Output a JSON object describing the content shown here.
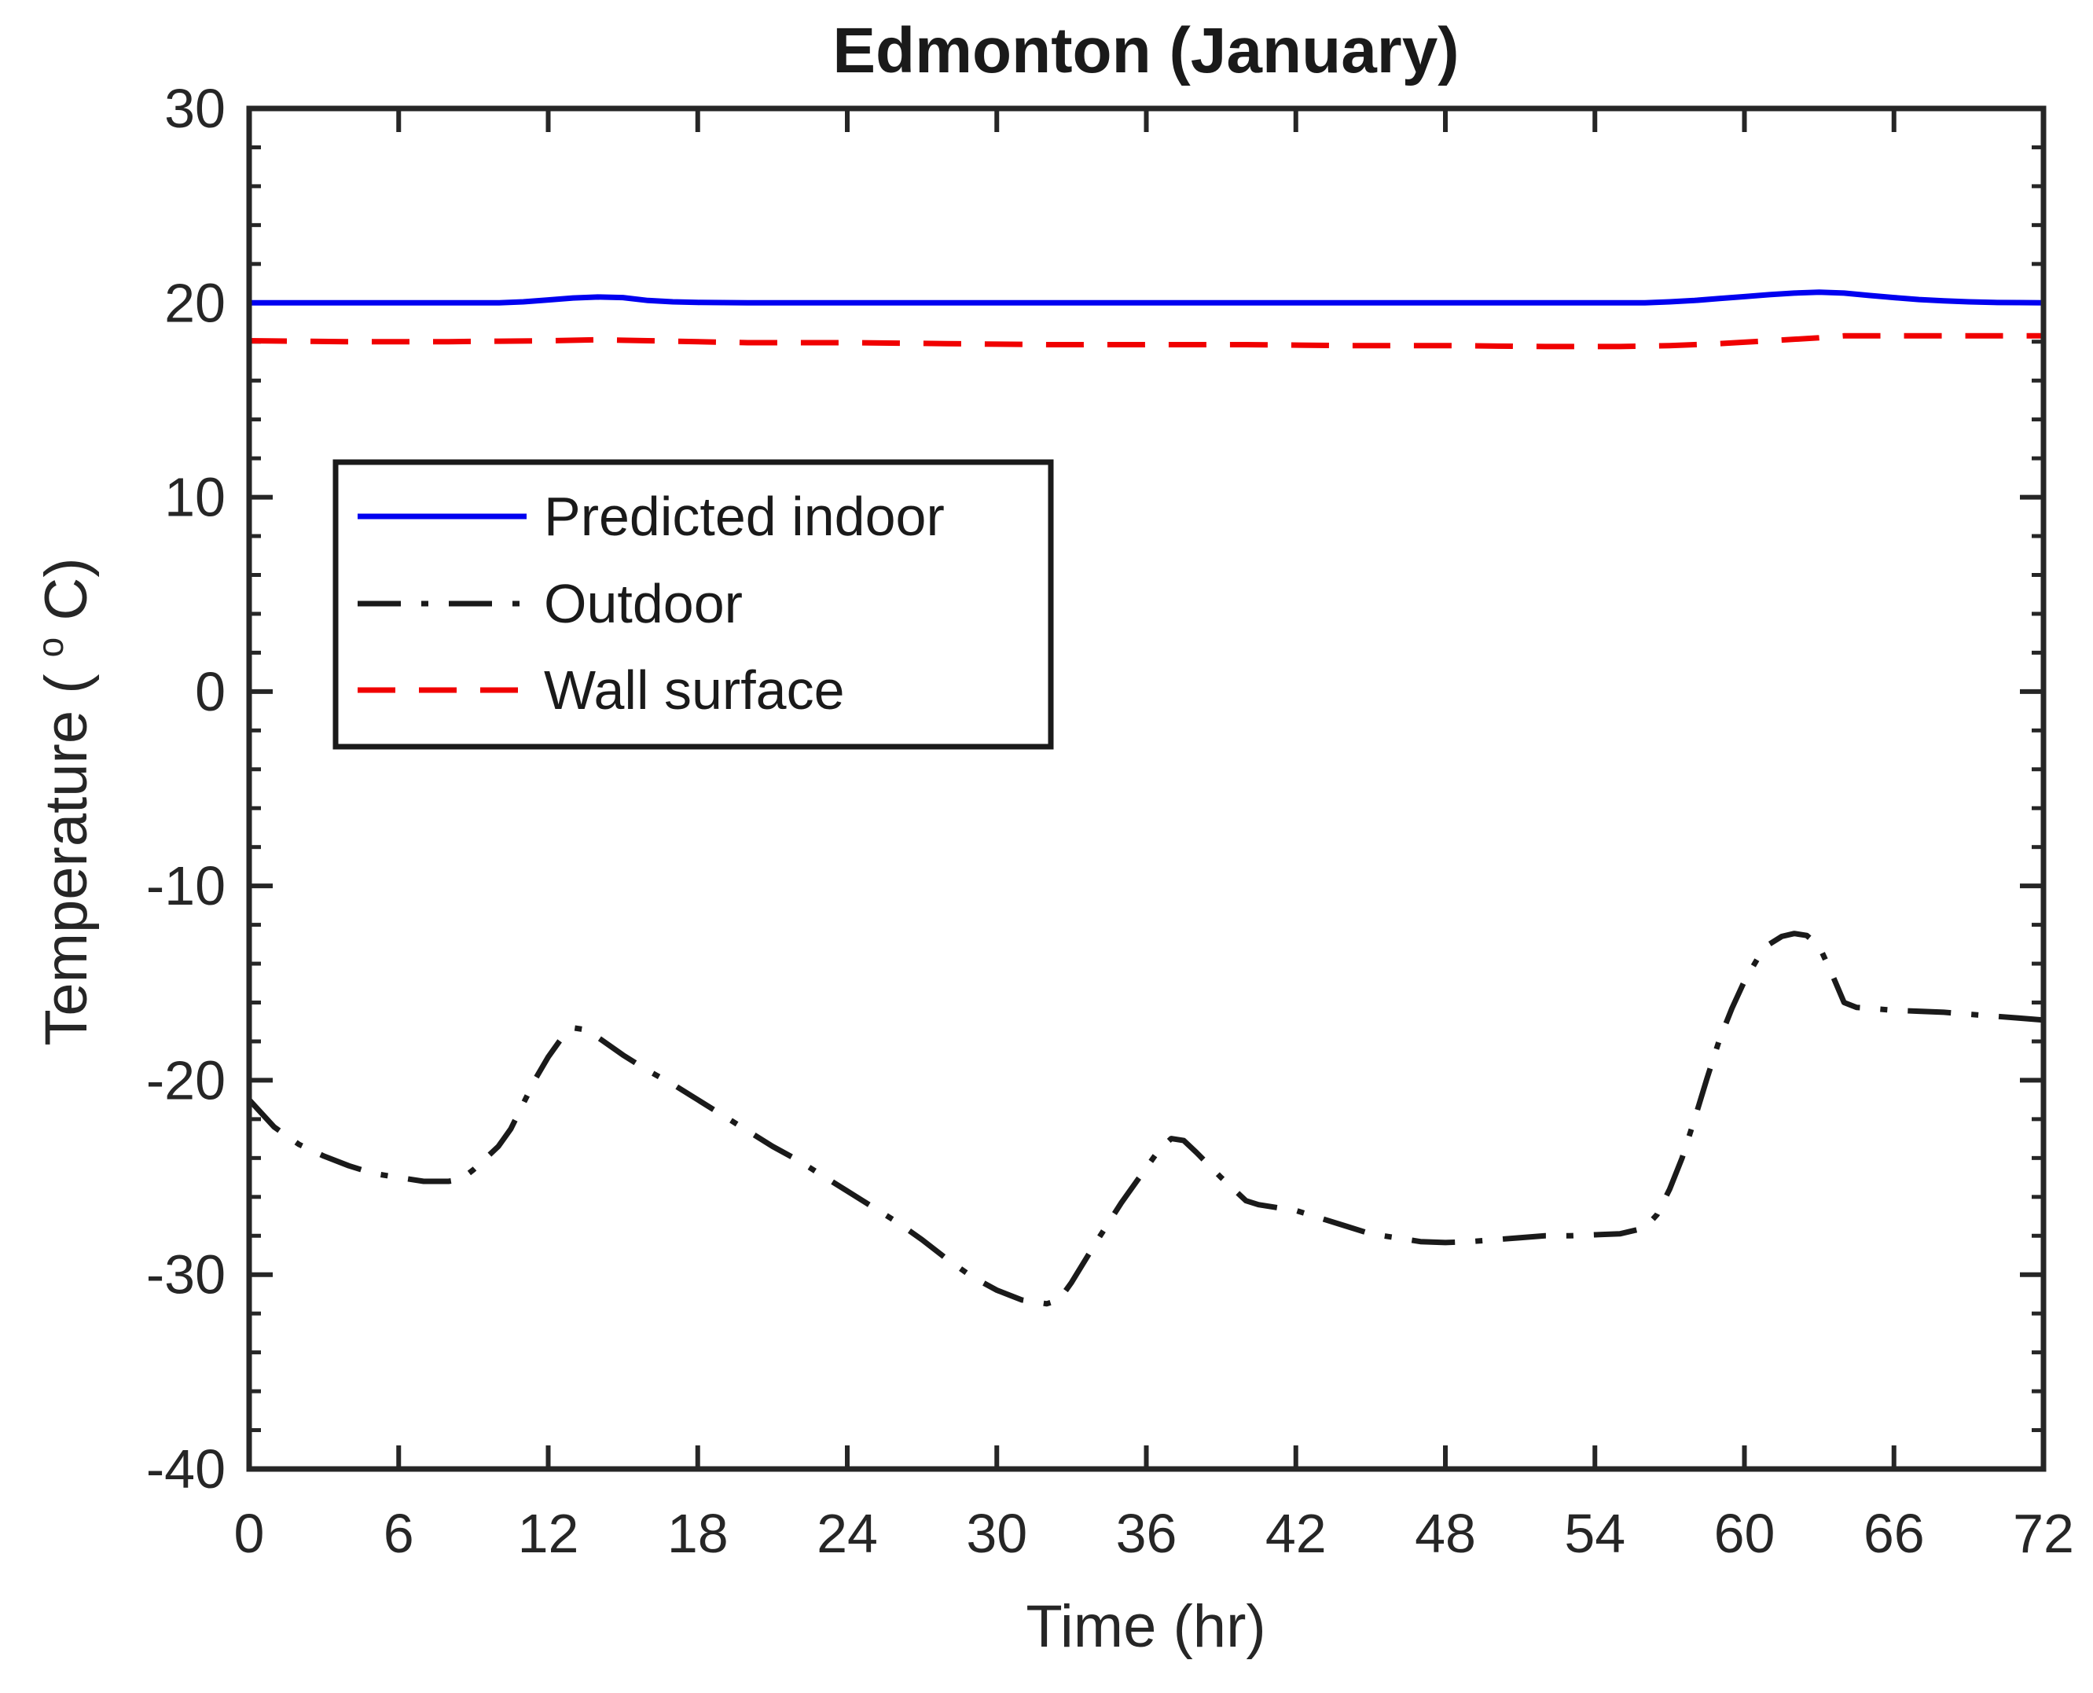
{
  "title": "Edmonton (January)",
  "colors": {
    "axis": "#262626",
    "background": "#ffffff",
    "predicted_indoor": "#0000f0",
    "outdoor": "#1a1a1a",
    "wall_surface": "#f00000"
  },
  "legend": {
    "position": "upper-left-inside",
    "items": [
      "Predicted indoor",
      "Outdoor",
      "Wall surface"
    ]
  },
  "chart_data": {
    "type": "line",
    "title": "Edmonton (January)",
    "xlabel": "Time (hr)",
    "ylabel": "Temperature (oC)",
    "ylabel_parts": [
      "Temperature (",
      "o",
      "C)"
    ],
    "xlim": [
      0,
      72
    ],
    "ylim": [
      -40,
      30
    ],
    "xticks": [
      0,
      6,
      12,
      18,
      24,
      30,
      36,
      42,
      48,
      54,
      60,
      66,
      72
    ],
    "yticks": [
      30,
      20,
      10,
      0,
      -10,
      -20,
      -30,
      -40
    ],
    "y_minor_step": 2,
    "grid": false,
    "legend_position": "upper-left",
    "series": [
      {
        "id": "predicted-indoor",
        "label": "Predicted indoor",
        "color": "#0000f0",
        "style": "solid",
        "dash": "none",
        "points": [
          [
            0,
            20
          ],
          [
            4,
            20
          ],
          [
            8,
            20
          ],
          [
            10,
            20
          ],
          [
            11,
            20.05
          ],
          [
            12,
            20.15
          ],
          [
            13,
            20.25
          ],
          [
            14,
            20.3
          ],
          [
            15,
            20.27
          ],
          [
            16,
            20.12
          ],
          [
            17,
            20.05
          ],
          [
            18,
            20.02
          ],
          [
            20,
            20
          ],
          [
            24,
            20
          ],
          [
            28,
            20
          ],
          [
            32,
            20
          ],
          [
            36,
            20
          ],
          [
            40,
            20
          ],
          [
            44,
            20
          ],
          [
            48,
            20
          ],
          [
            52,
            20
          ],
          [
            56,
            20
          ],
          [
            57,
            20.05
          ],
          [
            58,
            20.12
          ],
          [
            59,
            20.22
          ],
          [
            60,
            20.32
          ],
          [
            61,
            20.42
          ],
          [
            62,
            20.5
          ],
          [
            63,
            20.55
          ],
          [
            64,
            20.5
          ],
          [
            65,
            20.38
          ],
          [
            66,
            20.27
          ],
          [
            67,
            20.17
          ],
          [
            68,
            20.1
          ],
          [
            69,
            20.05
          ],
          [
            70,
            20.02
          ],
          [
            71,
            20.01
          ],
          [
            72,
            20
          ]
        ]
      },
      {
        "id": "outdoor",
        "label": "Outdoor",
        "color": "#1a1a1a",
        "style": "dash-dot",
        "dash": "55 26 9 26",
        "points": [
          [
            0,
            -21
          ],
          [
            1,
            -22.4
          ],
          [
            2,
            -23.3
          ],
          [
            3,
            -23.9
          ],
          [
            4,
            -24.4
          ],
          [
            5,
            -24.8
          ],
          [
            6,
            -25.0
          ],
          [
            7,
            -25.2
          ],
          [
            8,
            -25.2
          ],
          [
            8.5,
            -25.1
          ],
          [
            9,
            -24.6
          ],
          [
            10,
            -23.4
          ],
          [
            10.5,
            -22.5
          ],
          [
            11,
            -21.2
          ],
          [
            11.5,
            -19.9
          ],
          [
            12,
            -18.8
          ],
          [
            12.5,
            -17.9
          ],
          [
            13,
            -17.3
          ],
          [
            13.5,
            -17.4
          ],
          [
            14,
            -17.8
          ],
          [
            15,
            -18.7
          ],
          [
            16,
            -19.5
          ],
          [
            17,
            -20.2
          ],
          [
            18,
            -21.0
          ],
          [
            19,
            -21.8
          ],
          [
            20,
            -22.6
          ],
          [
            21,
            -23.4
          ],
          [
            22,
            -24.1
          ],
          [
            23,
            -24.9
          ],
          [
            24,
            -25.7
          ],
          [
            25,
            -26.5
          ],
          [
            26,
            -27.3
          ],
          [
            27,
            -28.2
          ],
          [
            28,
            -29.2
          ],
          [
            29,
            -30.1
          ],
          [
            30,
            -30.8
          ],
          [
            31,
            -31.3
          ],
          [
            32,
            -31.5
          ],
          [
            32.5,
            -31.3
          ],
          [
            33,
            -30.4
          ],
          [
            34,
            -28.3
          ],
          [
            35,
            -26.3
          ],
          [
            36,
            -24.5
          ],
          [
            36.5,
            -23.6
          ],
          [
            37,
            -23.0
          ],
          [
            37.5,
            -23.1
          ],
          [
            38,
            -23.7
          ],
          [
            39,
            -25.0
          ],
          [
            40,
            -26.2
          ],
          [
            40.5,
            -26.4
          ],
          [
            41,
            -26.5
          ],
          [
            42,
            -26.7
          ],
          [
            43,
            -27.1
          ],
          [
            44,
            -27.5
          ],
          [
            45,
            -27.9
          ],
          [
            46,
            -28.1
          ],
          [
            47,
            -28.3
          ],
          [
            48,
            -28.35
          ],
          [
            49,
            -28.3
          ],
          [
            50,
            -28.2
          ],
          [
            51,
            -28.1
          ],
          [
            52,
            -28.0
          ],
          [
            53,
            -28.0
          ],
          [
            54,
            -27.95
          ],
          [
            55,
            -27.9
          ],
          [
            56,
            -27.6
          ],
          [
            56.5,
            -26.9
          ],
          [
            57,
            -25.6
          ],
          [
            57.5,
            -24.0
          ],
          [
            58,
            -22.0
          ],
          [
            58.5,
            -19.9
          ],
          [
            59,
            -17.9
          ],
          [
            59.5,
            -16.3
          ],
          [
            60,
            -14.9
          ],
          [
            60.5,
            -13.8
          ],
          [
            61,
            -13.0
          ],
          [
            61.5,
            -12.6
          ],
          [
            62,
            -12.45
          ],
          [
            62.5,
            -12.55
          ],
          [
            63,
            -13.1
          ],
          [
            63.5,
            -14.5
          ],
          [
            64,
            -16.0
          ],
          [
            64.5,
            -16.25
          ],
          [
            65,
            -16.3
          ],
          [
            66,
            -16.4
          ],
          [
            67,
            -16.45
          ],
          [
            68,
            -16.5
          ],
          [
            69,
            -16.6
          ],
          [
            70,
            -16.7
          ],
          [
            71,
            -16.8
          ],
          [
            72,
            -16.9
          ]
        ]
      },
      {
        "id": "wall-surface",
        "label": "Wall surface",
        "color": "#f00000",
        "style": "dashed",
        "dash": "48 30",
        "points": [
          [
            0,
            18.05
          ],
          [
            4,
            18.0
          ],
          [
            8,
            18.0
          ],
          [
            12,
            18.05
          ],
          [
            14,
            18.1
          ],
          [
            16,
            18.05
          ],
          [
            20,
            17.95
          ],
          [
            24,
            17.95
          ],
          [
            28,
            17.9
          ],
          [
            32,
            17.85
          ],
          [
            36,
            17.85
          ],
          [
            40,
            17.85
          ],
          [
            44,
            17.8
          ],
          [
            48,
            17.8
          ],
          [
            52,
            17.75
          ],
          [
            55,
            17.75
          ],
          [
            57,
            17.8
          ],
          [
            59,
            17.9
          ],
          [
            61,
            18.05
          ],
          [
            63,
            18.2
          ],
          [
            64,
            18.3
          ],
          [
            66,
            18.3
          ],
          [
            68,
            18.3
          ],
          [
            70,
            18.3
          ],
          [
            72,
            18.3
          ]
        ]
      }
    ]
  }
}
